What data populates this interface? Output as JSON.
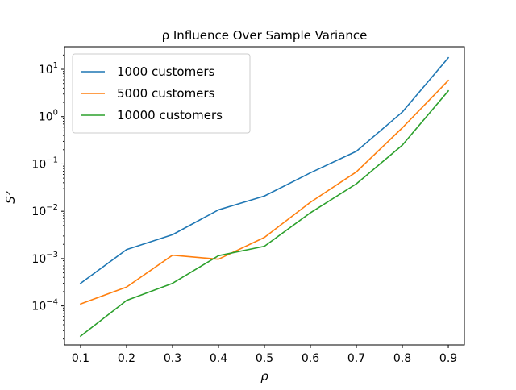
{
  "chart_data": {
    "type": "line",
    "title": "ρ Influence Over Sample Variance",
    "xlabel": "ρ",
    "ylabel": "S²",
    "yscale": "log",
    "x": [
      0.1,
      0.2,
      0.3,
      0.4,
      0.5,
      0.6,
      0.7,
      0.8,
      0.9
    ],
    "xlim": [
      0.065,
      0.935
    ],
    "ylim": [
      1.5e-05,
      30
    ],
    "x_ticks": [
      {
        "value": 0.1,
        "label": "0.1"
      },
      {
        "value": 0.2,
        "label": "0.2"
      },
      {
        "value": 0.3,
        "label": "0.3"
      },
      {
        "value": 0.4,
        "label": "0.4"
      },
      {
        "value": 0.5,
        "label": "0.5"
      },
      {
        "value": 0.6,
        "label": "0.6"
      },
      {
        "value": 0.7,
        "label": "0.7"
      },
      {
        "value": 0.8,
        "label": "0.8"
      },
      {
        "value": 0.9,
        "label": "0.9"
      }
    ],
    "y_ticks": [
      {
        "value": 0.0001,
        "base": "10",
        "exp": "−4"
      },
      {
        "value": 0.001,
        "base": "10",
        "exp": "−3"
      },
      {
        "value": 0.01,
        "base": "10",
        "exp": "−2"
      },
      {
        "value": 0.1,
        "base": "10",
        "exp": "−1"
      },
      {
        "value": 1,
        "base": "10",
        "exp": "0"
      },
      {
        "value": 10,
        "base": "10",
        "exp": "1"
      }
    ],
    "grid": false,
    "legend_position": "top-left",
    "series": [
      {
        "name": "1000 customers",
        "color": "#1f77b4",
        "values": [
          0.0003,
          0.00155,
          0.0032,
          0.0107,
          0.021,
          0.065,
          0.185,
          1.25,
          17.5
        ]
      },
      {
        "name": "5000 customers",
        "color": "#ff7f0e",
        "values": [
          0.00011,
          0.00025,
          0.00118,
          0.00097,
          0.0028,
          0.0155,
          0.068,
          0.58,
          5.8
        ]
      },
      {
        "name": "10000 customers",
        "color": "#2ca02c",
        "values": [
          2.3e-05,
          0.00013,
          0.0003,
          0.00115,
          0.00182,
          0.0093,
          0.038,
          0.25,
          3.5
        ]
      }
    ]
  }
}
